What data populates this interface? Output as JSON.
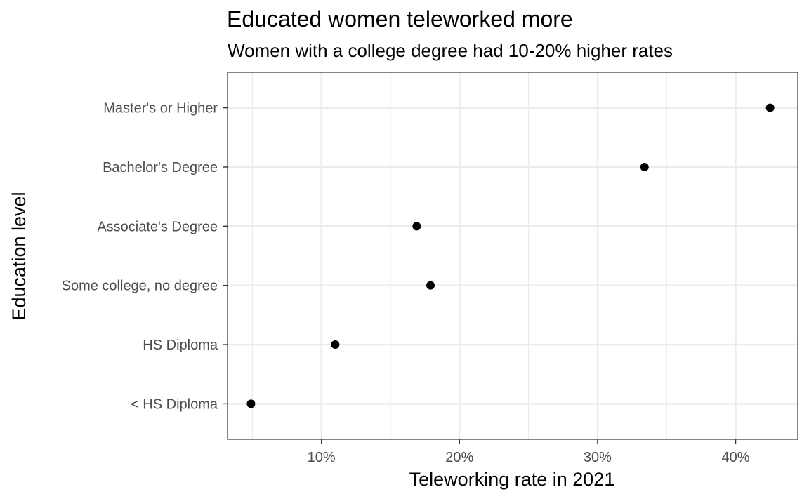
{
  "chart_data": {
    "type": "scatter",
    "title": "Educated women teleworked more",
    "subtitle": "Women with a college degree had 10-20% higher rates",
    "xlabel": "Teleworking rate in 2021",
    "ylabel": "Education level",
    "categories": [
      "< HS Diploma",
      "HS Diploma",
      "Some college, no degree",
      "Associate's Degree",
      "Bachelor's Degree",
      "Master's or Higher"
    ],
    "values": [
      4.9,
      11.0,
      17.9,
      16.9,
      33.4,
      42.5
    ],
    "x_ticks": [
      10,
      20,
      30,
      40
    ],
    "x_tick_labels": [
      "10%",
      "20%",
      "30%",
      "40%"
    ],
    "xlim": [
      3.2,
      44.5
    ],
    "grid": true,
    "theme_colors": {
      "point": "#000000",
      "grid": "#ebebeb",
      "panel_border": "#333333",
      "tick_label": "#4d4d4d"
    }
  }
}
